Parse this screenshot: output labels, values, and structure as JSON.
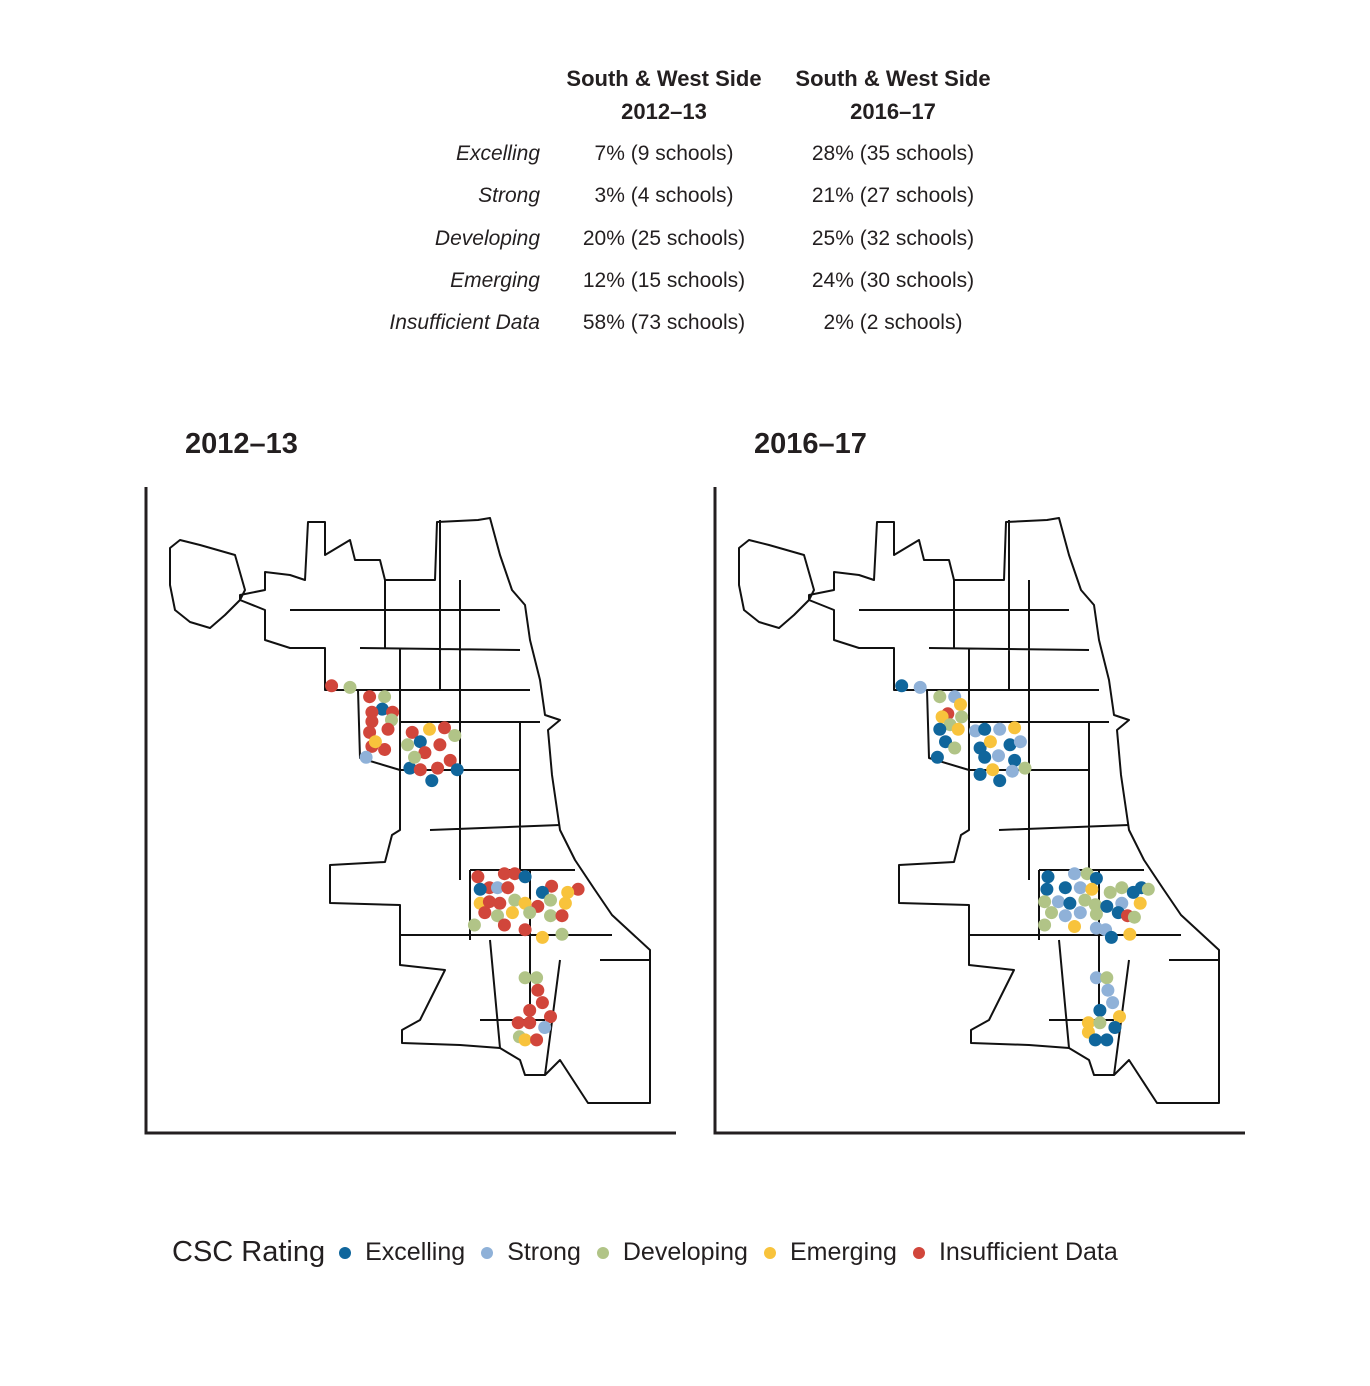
{
  "table": {
    "headers": [
      {
        "line1": "South & West Side",
        "line2": "2012–13"
      },
      {
        "line1": "South & West Side",
        "line2": "2016–17"
      }
    ],
    "rows": [
      {
        "label": "Excelling",
        "v2012": "7% (9 schools)",
        "v2016": "28% (35 schools)"
      },
      {
        "label": "Strong",
        "v2012": "3% (4 schools)",
        "v2016": "21% (27 schools)"
      },
      {
        "label": "Developing",
        "v2012": "20% (25 schools)",
        "v2016": "25% (32 schools)"
      },
      {
        "label": "Emerging",
        "v2012": "12% (15 schools)",
        "v2016": "24% (30 schools)"
      },
      {
        "label": "Insufficient Data",
        "v2012": "58% (73 schools)",
        "v2016": "2% (2 schools)"
      }
    ]
  },
  "maps": {
    "titles": [
      "2012–13",
      "2016–17"
    ],
    "extent": {
      "lon": [
        -87.94,
        -87.52
      ],
      "lat": [
        41.64,
        42.02
      ]
    },
    "points_2012": [
      [
        -87.798,
        41.91,
        "I"
      ],
      [
        -87.782,
        41.909,
        "D"
      ],
      [
        -87.765,
        41.903,
        "I"
      ],
      [
        -87.752,
        41.903,
        "D"
      ],
      [
        -87.754,
        41.895,
        "X"
      ],
      [
        -87.763,
        41.893,
        "I"
      ],
      [
        -87.745,
        41.893,
        "I"
      ],
      [
        -87.763,
        41.887,
        "I"
      ],
      [
        -87.746,
        41.888,
        "D"
      ],
      [
        -87.765,
        41.88,
        "I"
      ],
      [
        -87.749,
        41.882,
        "I"
      ],
      [
        -87.763,
        41.871,
        "I"
      ],
      [
        -87.752,
        41.869,
        "I"
      ],
      [
        -87.768,
        41.864,
        "S"
      ],
      [
        -87.76,
        41.874,
        "E"
      ],
      [
        -87.728,
        41.88,
        "I"
      ],
      [
        -87.713,
        41.882,
        "E"
      ],
      [
        -87.7,
        41.883,
        "I"
      ],
      [
        -87.691,
        41.878,
        "D"
      ],
      [
        -87.721,
        41.874,
        "X"
      ],
      [
        -87.732,
        41.872,
        "D"
      ],
      [
        -87.704,
        41.872,
        "I"
      ],
      [
        -87.717,
        41.867,
        "I"
      ],
      [
        -87.695,
        41.862,
        "I"
      ],
      [
        -87.73,
        41.857,
        "X"
      ],
      [
        -87.711,
        41.849,
        "X"
      ],
      [
        -87.689,
        41.856,
        "X"
      ],
      [
        -87.721,
        41.856,
        "I"
      ],
      [
        -87.706,
        41.857,
        "I"
      ],
      [
        -87.726,
        41.864,
        "D"
      ],
      [
        -87.671,
        41.787,
        "I"
      ],
      [
        -87.648,
        41.789,
        "I"
      ],
      [
        -87.639,
        41.789,
        "I"
      ],
      [
        -87.63,
        41.787,
        "X"
      ],
      [
        -87.661,
        41.78,
        "I"
      ],
      [
        -87.669,
        41.779,
        "X"
      ],
      [
        -87.654,
        41.78,
        "S"
      ],
      [
        -87.645,
        41.78,
        "I"
      ],
      [
        -87.607,
        41.781,
        "I"
      ],
      [
        -87.615,
        41.777,
        "X"
      ],
      [
        -87.584,
        41.779,
        "I"
      ],
      [
        -87.593,
        41.777,
        "E"
      ],
      [
        -87.669,
        41.77,
        "E"
      ],
      [
        -87.661,
        41.771,
        "I"
      ],
      [
        -87.652,
        41.77,
        "I"
      ],
      [
        -87.639,
        41.772,
        "D"
      ],
      [
        -87.63,
        41.77,
        "E"
      ],
      [
        -87.619,
        41.768,
        "I"
      ],
      [
        -87.608,
        41.772,
        "D"
      ],
      [
        -87.595,
        41.77,
        "E"
      ],
      [
        -87.665,
        41.764,
        "I"
      ],
      [
        -87.654,
        41.762,
        "D"
      ],
      [
        -87.641,
        41.764,
        "E"
      ],
      [
        -87.626,
        41.764,
        "D"
      ],
      [
        -87.608,
        41.762,
        "D"
      ],
      [
        -87.598,
        41.762,
        "I"
      ],
      [
        -87.674,
        41.756,
        "D"
      ],
      [
        -87.648,
        41.756,
        "I"
      ],
      [
        -87.63,
        41.753,
        "I"
      ],
      [
        -87.615,
        41.748,
        "E"
      ],
      [
        -87.598,
        41.75,
        "D"
      ],
      [
        -87.63,
        41.722,
        "D"
      ],
      [
        -87.62,
        41.722,
        "D"
      ],
      [
        -87.619,
        41.714,
        "I"
      ],
      [
        -87.615,
        41.706,
        "I"
      ],
      [
        -87.626,
        41.701,
        "I"
      ],
      [
        -87.608,
        41.697,
        "I"
      ],
      [
        -87.636,
        41.693,
        "I"
      ],
      [
        -87.626,
        41.693,
        "I"
      ],
      [
        -87.613,
        41.69,
        "S"
      ],
      [
        -87.635,
        41.684,
        "D"
      ],
      [
        -87.63,
        41.682,
        "E"
      ],
      [
        -87.62,
        41.682,
        "I"
      ]
    ],
    "points_2016": [
      [
        -87.797,
        41.91,
        "X"
      ],
      [
        -87.781,
        41.909,
        "S"
      ],
      [
        -87.764,
        41.903,
        "D"
      ],
      [
        -87.751,
        41.903,
        "S"
      ],
      [
        -87.746,
        41.898,
        "E"
      ],
      [
        -87.757,
        41.892,
        "I"
      ],
      [
        -87.762,
        41.89,
        "E"
      ],
      [
        -87.745,
        41.89,
        "D"
      ],
      [
        -87.755,
        41.885,
        "D"
      ],
      [
        -87.764,
        41.882,
        "X"
      ],
      [
        -87.748,
        41.882,
        "E"
      ],
      [
        -87.733,
        41.881,
        "S"
      ],
      [
        -87.725,
        41.882,
        "X"
      ],
      [
        -87.712,
        41.882,
        "S"
      ],
      [
        -87.699,
        41.883,
        "E"
      ],
      [
        -87.759,
        41.874,
        "X"
      ],
      [
        -87.751,
        41.87,
        "D"
      ],
      [
        -87.766,
        41.864,
        "X"
      ],
      [
        -87.729,
        41.87,
        "X"
      ],
      [
        -87.72,
        41.874,
        "E"
      ],
      [
        -87.703,
        41.872,
        "X"
      ],
      [
        -87.694,
        41.874,
        "S"
      ],
      [
        -87.725,
        41.864,
        "X"
      ],
      [
        -87.713,
        41.865,
        "S"
      ],
      [
        -87.699,
        41.862,
        "X"
      ],
      [
        -87.69,
        41.857,
        "D"
      ],
      [
        -87.729,
        41.853,
        "X"
      ],
      [
        -87.712,
        41.849,
        "X"
      ],
      [
        -87.718,
        41.856,
        "E"
      ],
      [
        -87.701,
        41.855,
        "S"
      ],
      [
        -87.67,
        41.787,
        "X"
      ],
      [
        -87.647,
        41.789,
        "S"
      ],
      [
        -87.636,
        41.789,
        "D"
      ],
      [
        -87.628,
        41.786,
        "X"
      ],
      [
        -87.671,
        41.779,
        "X"
      ],
      [
        -87.655,
        41.78,
        "X"
      ],
      [
        -87.642,
        41.78,
        "S"
      ],
      [
        -87.632,
        41.779,
        "E"
      ],
      [
        -87.616,
        41.777,
        "D"
      ],
      [
        -87.606,
        41.78,
        "D"
      ],
      [
        -87.589,
        41.78,
        "X"
      ],
      [
        -87.596,
        41.777,
        "X"
      ],
      [
        -87.583,
        41.779,
        "D"
      ],
      [
        -87.673,
        41.771,
        "D"
      ],
      [
        -87.661,
        41.771,
        "S"
      ],
      [
        -87.651,
        41.77,
        "X"
      ],
      [
        -87.638,
        41.772,
        "D"
      ],
      [
        -87.629,
        41.769,
        "D"
      ],
      [
        -87.619,
        41.768,
        "X"
      ],
      [
        -87.606,
        41.77,
        "S"
      ],
      [
        -87.59,
        41.77,
        "E"
      ],
      [
        -87.667,
        41.764,
        "D"
      ],
      [
        -87.655,
        41.762,
        "S"
      ],
      [
        -87.642,
        41.764,
        "S"
      ],
      [
        -87.628,
        41.763,
        "D"
      ],
      [
        -87.609,
        41.764,
        "X"
      ],
      [
        -87.601,
        41.762,
        "I"
      ],
      [
        -87.595,
        41.761,
        "D"
      ],
      [
        -87.673,
        41.756,
        "D"
      ],
      [
        -87.647,
        41.755,
        "E"
      ],
      [
        -87.628,
        41.754,
        "S"
      ],
      [
        -87.62,
        41.753,
        "S"
      ],
      [
        -87.599,
        41.75,
        "E"
      ],
      [
        -87.615,
        41.748,
        "X"
      ],
      [
        -87.628,
        41.722,
        "S"
      ],
      [
        -87.619,
        41.722,
        "D"
      ],
      [
        -87.618,
        41.714,
        "S"
      ],
      [
        -87.614,
        41.706,
        "S"
      ],
      [
        -87.625,
        41.701,
        "X"
      ],
      [
        -87.608,
        41.697,
        "E"
      ],
      [
        -87.635,
        41.693,
        "E"
      ],
      [
        -87.625,
        41.693,
        "D"
      ],
      [
        -87.612,
        41.69,
        "X"
      ],
      [
        -87.635,
        41.687,
        "E"
      ],
      [
        -87.629,
        41.682,
        "X"
      ],
      [
        -87.619,
        41.682,
        "X"
      ]
    ]
  },
  "legend": {
    "title": "CSC Rating",
    "items": [
      {
        "code": "X",
        "label": "Excelling",
        "color": "#10669c"
      },
      {
        "code": "S",
        "label": "Strong",
        "color": "#8fb1d8"
      },
      {
        "code": "D",
        "label": "Developing",
        "color": "#b1c487"
      },
      {
        "code": "E",
        "label": "Emerging",
        "color": "#f8c33c"
      },
      {
        "code": "I",
        "label": "Insufficient Data",
        "color": "#d1463b"
      }
    ]
  }
}
